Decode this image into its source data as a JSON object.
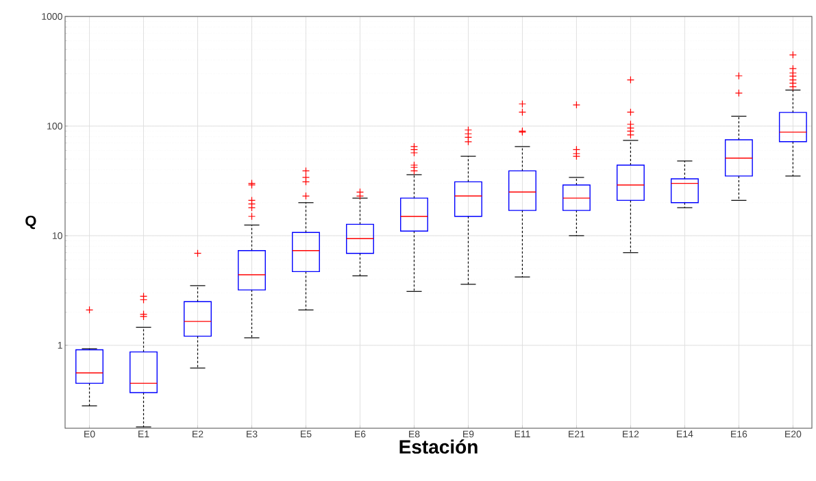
{
  "chart_data": {
    "type": "box",
    "xlabel": "Estación",
    "ylabel": "Q",
    "categories": [
      "E0",
      "E1",
      "E2",
      "E3",
      "E5",
      "E6",
      "E8",
      "E9",
      "E11",
      "E21",
      "E12",
      "E14",
      "E16",
      "E20"
    ],
    "series": [
      {
        "color": "#0000ff",
        "boxes": [
          {
            "low": 0.28,
            "q1": 0.45,
            "median": 0.56,
            "q3": 0.91,
            "high": 0.93,
            "outliers": [
              2.1
            ]
          },
          {
            "low": 0.18,
            "q1": 0.37,
            "median": 0.45,
            "q3": 0.87,
            "high": 1.46,
            "outliers": [
              1.83,
              1.92,
              2.6,
              2.8
            ]
          },
          {
            "low": 0.62,
            "q1": 1.21,
            "median": 1.65,
            "q3": 2.5,
            "high": 3.5,
            "outliers": [
              6.9
            ]
          },
          {
            "low": 1.17,
            "q1": 3.2,
            "median": 4.4,
            "q3": 7.3,
            "high": 12.5,
            "outliers": [
              15,
              18,
              19.5,
              21,
              29,
              30
            ]
          },
          {
            "low": 2.1,
            "q1": 4.7,
            "median": 7.3,
            "q3": 10.7,
            "high": 20,
            "outliers": [
              23,
              31,
              34,
              39
            ]
          },
          {
            "low": 4.3,
            "q1": 6.9,
            "median": 9.4,
            "q3": 12.7,
            "high": 22,
            "outliers": [
              23,
              25
            ]
          },
          {
            "low": 3.1,
            "q1": 11,
            "median": 15,
            "q3": 22,
            "high": 36,
            "outliers": [
              39,
              42,
              44,
              57,
              61,
              65
            ]
          },
          {
            "low": 3.6,
            "q1": 15,
            "median": 23,
            "q3": 31,
            "high": 53,
            "outliers": [
              72,
              79,
              85,
              92
            ]
          },
          {
            "low": 4.2,
            "q1": 17,
            "median": 25,
            "q3": 39,
            "high": 65,
            "outliers": [
              88,
              90,
              134,
              159
            ]
          },
          {
            "low": 10,
            "q1": 17,
            "median": 22,
            "q3": 29,
            "high": 34,
            "outliers": [
              53,
              56,
              61,
              156
            ]
          },
          {
            "low": 7,
            "q1": 21,
            "median": 29,
            "q3": 44,
            "high": 74,
            "outliers": [
              83,
              90,
              96,
              104,
              134,
              264
            ]
          },
          {
            "low": 18,
            "q1": 20,
            "median": 30,
            "q3": 33,
            "high": 48
          },
          {
            "low": 21,
            "q1": 35,
            "median": 51,
            "q3": 75,
            "high": 123,
            "outliers": [
              200,
              287
            ]
          },
          {
            "low": 35,
            "q1": 72,
            "median": 88,
            "q3": 133,
            "high": 213,
            "outliers": [
              228,
              246,
              264,
              285,
              305,
              334,
              446
            ]
          }
        ]
      }
    ],
    "log": true,
    "ylim": [
      0.175,
      1000
    ],
    "yticks": [
      1,
      10,
      100,
      1000
    ],
    "grid": true,
    "marker": "cross",
    "line_style": "dashed"
  }
}
